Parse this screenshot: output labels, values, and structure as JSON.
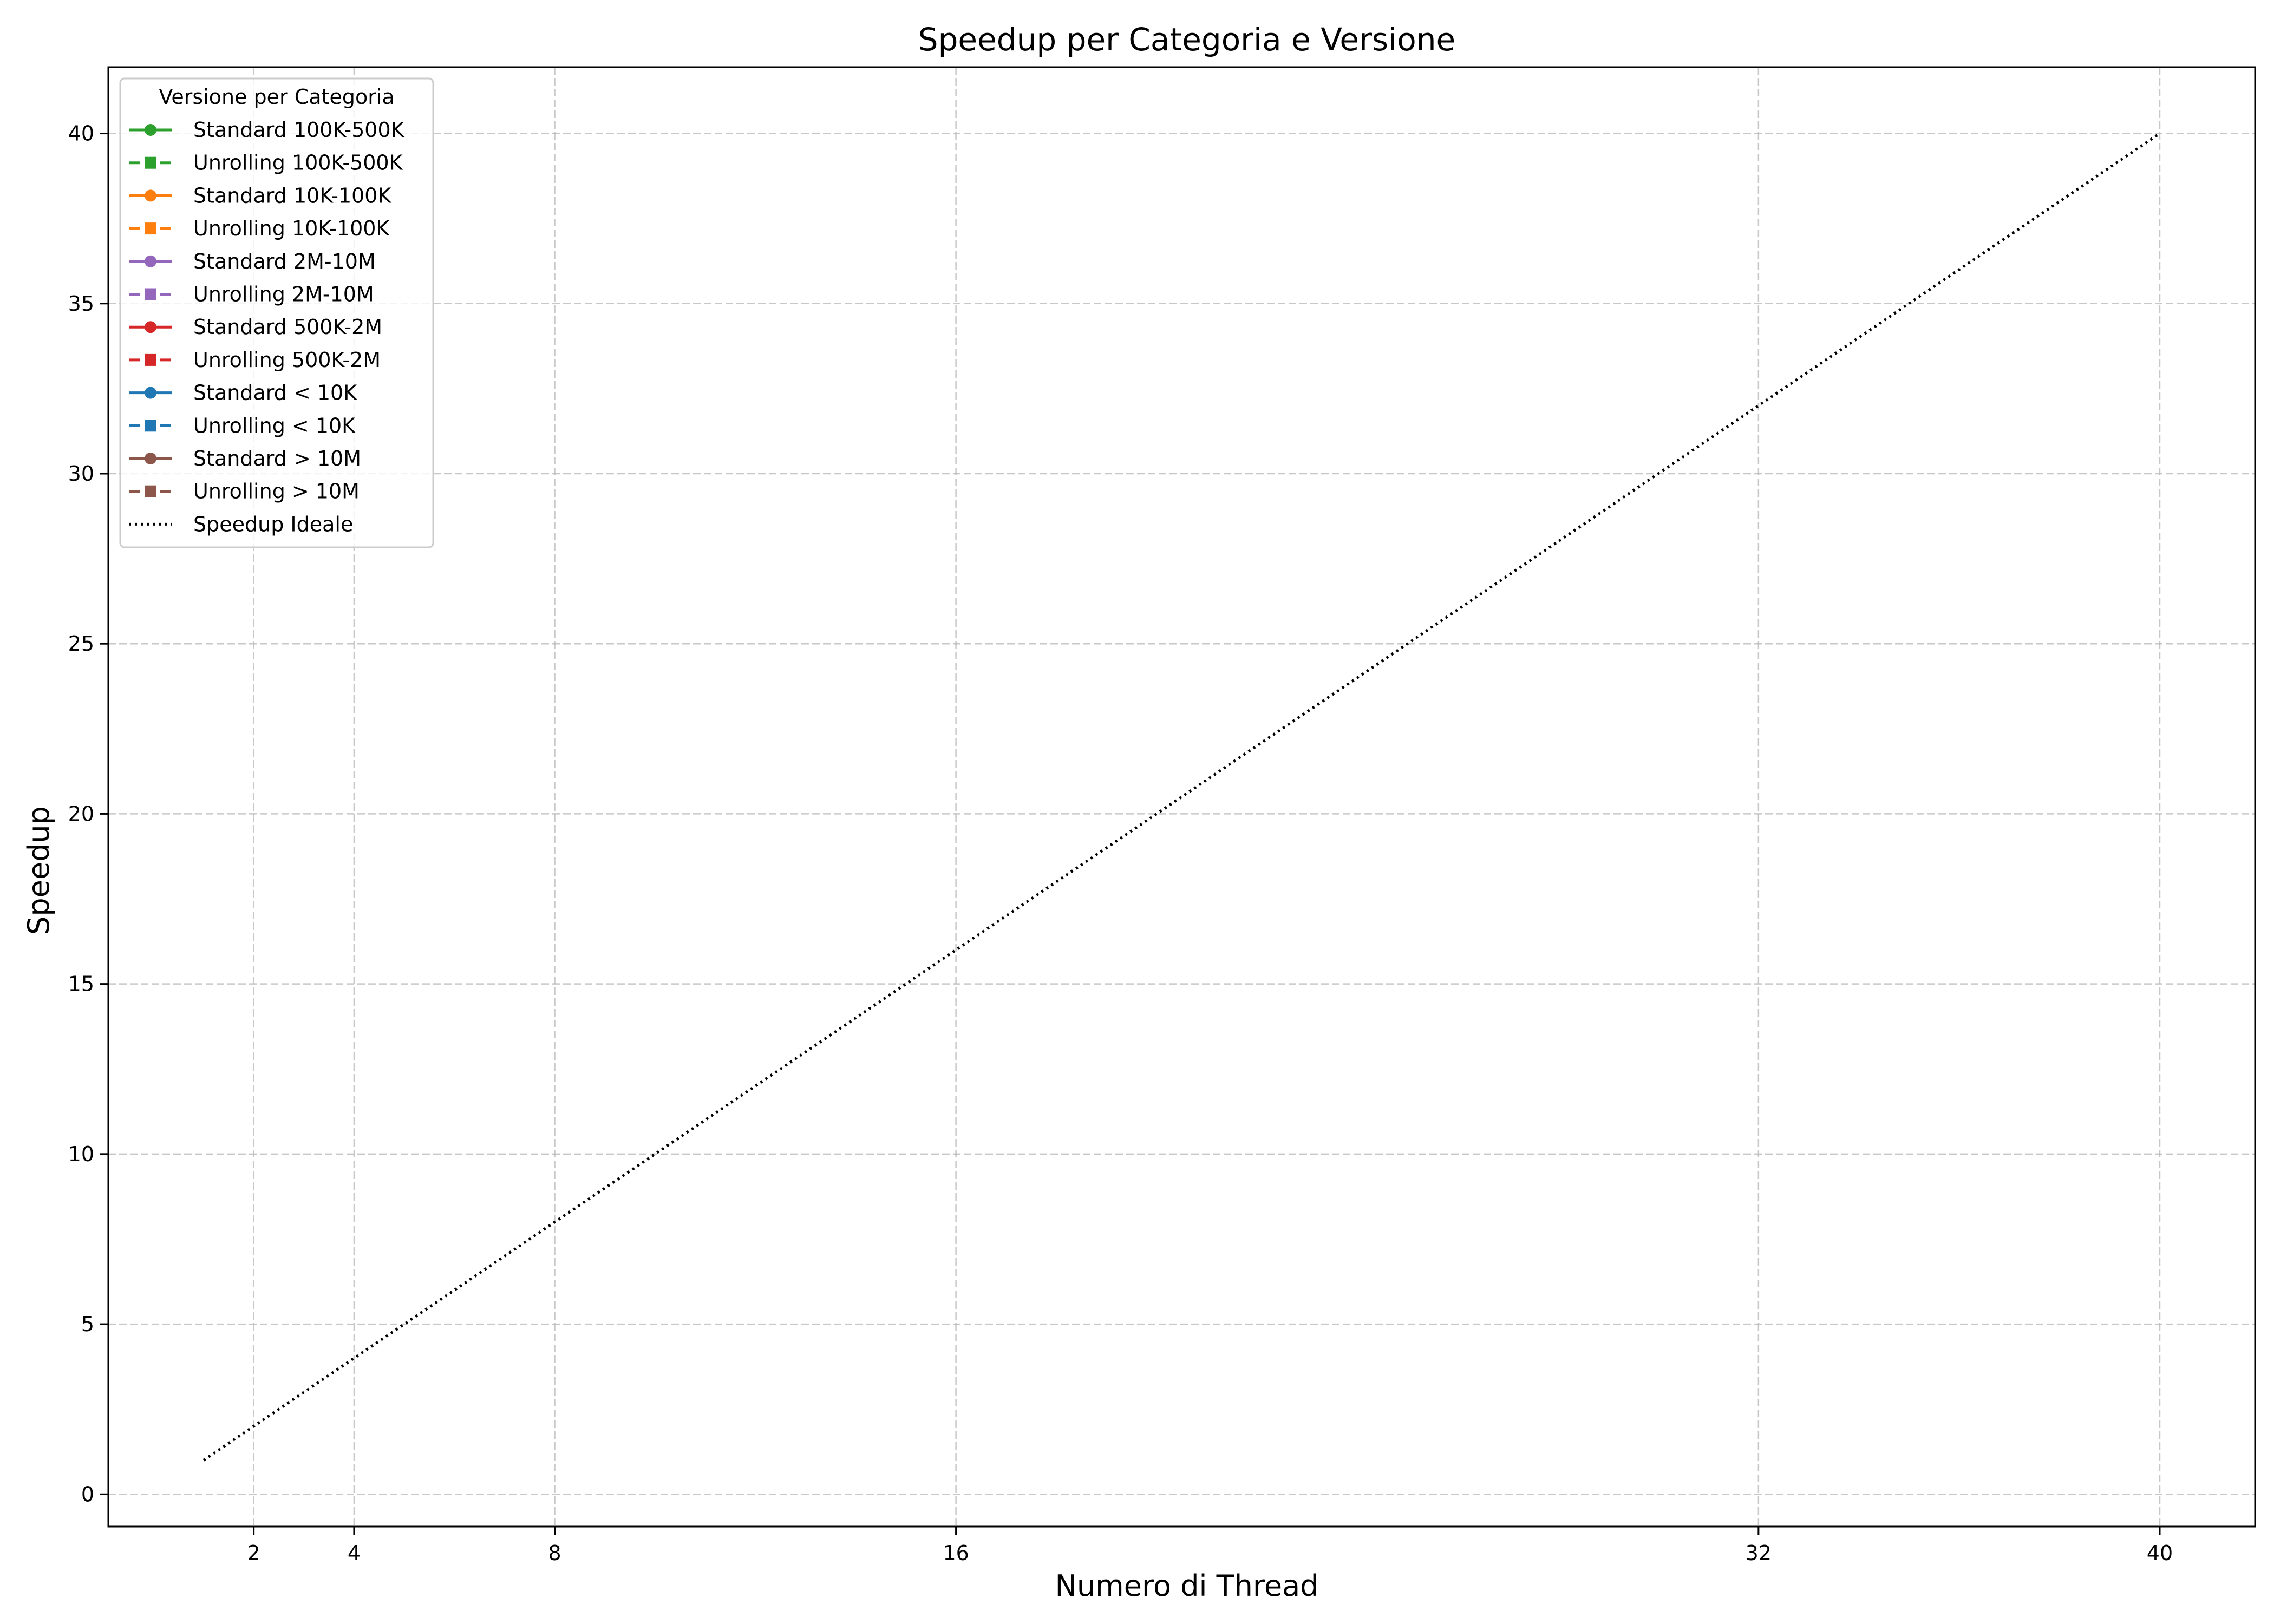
{
  "chart_data": {
    "type": "line",
    "title": "Speedup per Categoria e Versione",
    "xlabel": "Numero di Thread",
    "ylabel": "Speedup",
    "xlim": [
      -0.9,
      41.9
    ],
    "ylim": [
      -0.95,
      41.95
    ],
    "xticks": [
      2,
      4,
      8,
      16,
      32,
      40
    ],
    "yticks": [
      0,
      5,
      10,
      15,
      20,
      25,
      30,
      35,
      40
    ],
    "grid": true,
    "legend": {
      "title": "Versione per Categoria",
      "placement": "top-left",
      "entries": [
        {
          "label": "Standard 100K-500K",
          "color": "#2ca02c",
          "style": "solid",
          "marker": "circle"
        },
        {
          "label": "Unrolling 100K-500K",
          "color": "#2ca02c",
          "style": "dashed",
          "marker": "square"
        },
        {
          "label": "Standard 10K-100K",
          "color": "#ff7f0e",
          "style": "solid",
          "marker": "circle"
        },
        {
          "label": "Unrolling 10K-100K",
          "color": "#ff7f0e",
          "style": "dashed",
          "marker": "square"
        },
        {
          "label": "Standard 2M-10M",
          "color": "#9467bd",
          "style": "solid",
          "marker": "circle"
        },
        {
          "label": "Unrolling 2M-10M",
          "color": "#9467bd",
          "style": "dashed",
          "marker": "square"
        },
        {
          "label": "Standard 500K-2M",
          "color": "#d62728",
          "style": "solid",
          "marker": "circle"
        },
        {
          "label": "Unrolling 500K-2M",
          "color": "#d62728",
          "style": "dashed",
          "marker": "square"
        },
        {
          "label": "Standard < 10K",
          "color": "#1f77b4",
          "style": "solid",
          "marker": "circle"
        },
        {
          "label": "Unrolling < 10K",
          "color": "#1f77b4",
          "style": "dashed",
          "marker": "square"
        },
        {
          "label": "Standard > 10M",
          "color": "#8c564b",
          "style": "solid",
          "marker": "circle"
        },
        {
          "label": "Unrolling > 10M",
          "color": "#8c564b",
          "style": "dashed",
          "marker": "square"
        },
        {
          "label": "Speedup Ideale",
          "color": "#000000",
          "style": "dotted",
          "marker": "none"
        }
      ]
    },
    "series": [
      {
        "name": "Speedup Ideale",
        "color": "#000000",
        "style": "dotted",
        "x": [
          1,
          40
        ],
        "y": [
          1,
          40
        ]
      }
    ]
  }
}
